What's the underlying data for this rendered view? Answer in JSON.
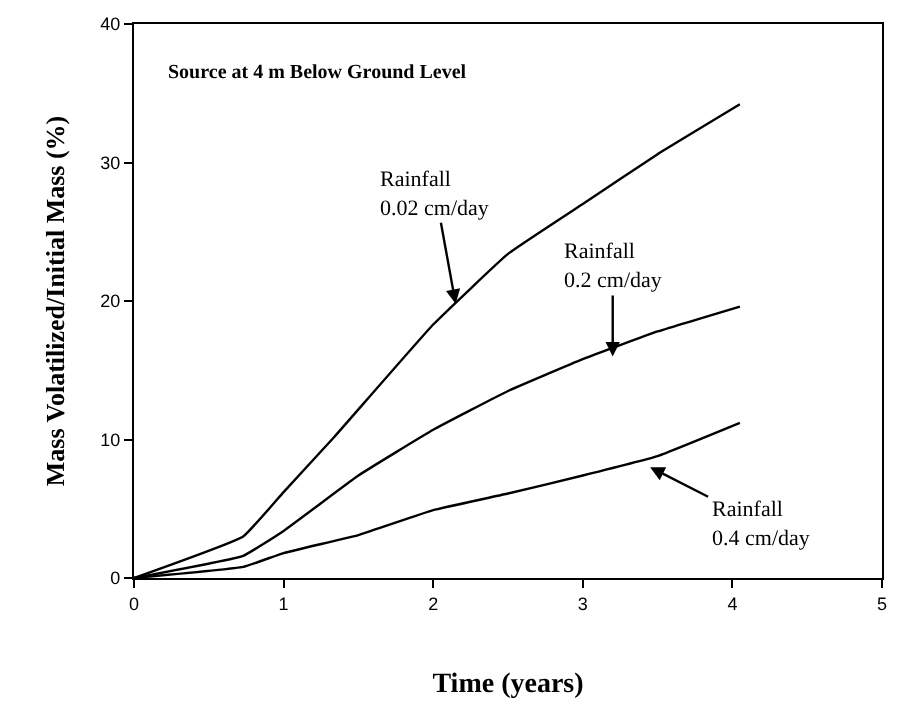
{
  "chart_data": {
    "type": "line",
    "title": "Source at 4 m Below Ground Level",
    "xlabel": "Time (years)",
    "ylabel": "Mass Volatilized/Initial Mass (%)",
    "series": [
      {
        "color": "#000000",
        "x": [
          0,
          0.73,
          1.0,
          1.34,
          2.0,
          2.5,
          3.0,
          3.5,
          4.05
        ],
        "values": [
          0,
          3.0,
          6.2,
          10.2,
          18.3,
          23.4,
          27.0,
          30.6,
          34.2
        ]
      },
      {
        "color": "#000000",
        "x": [
          0,
          0.73,
          1.0,
          1.5,
          2.0,
          2.5,
          3.0,
          3.5,
          4.05
        ],
        "values": [
          0,
          1.6,
          3.4,
          7.4,
          10.7,
          13.5,
          15.8,
          17.8,
          19.6
        ]
      },
      {
        "color": "#000000",
        "x": [
          0,
          0.73,
          1.0,
          1.5,
          2.0,
          2.5,
          3.0,
          3.5,
          4.05
        ],
        "values": [
          0,
          0.8,
          1.8,
          3.1,
          4.9,
          6.1,
          7.4,
          8.8,
          11.2
        ]
      }
    ],
    "annotations": [
      {
        "text": "Rainfall\n0.02 cm/day",
        "x": 2.15,
        "y": 19.8
      },
      {
        "text": "Rainfall\n0.2 cm/day",
        "x": 3.2,
        "y": 16.0
      },
      {
        "text": "Rainfall\n0.4 cm/day",
        "x": 3.45,
        "y": 8.0
      }
    ],
    "xlim": [
      0,
      5
    ],
    "xticks": [
      0,
      1,
      2,
      3,
      4,
      5
    ],
    "ylim": [
      0,
      40
    ],
    "yticks": [
      0,
      10,
      20,
      30,
      40
    ],
    "marker": "none",
    "line_style": "solid"
  }
}
